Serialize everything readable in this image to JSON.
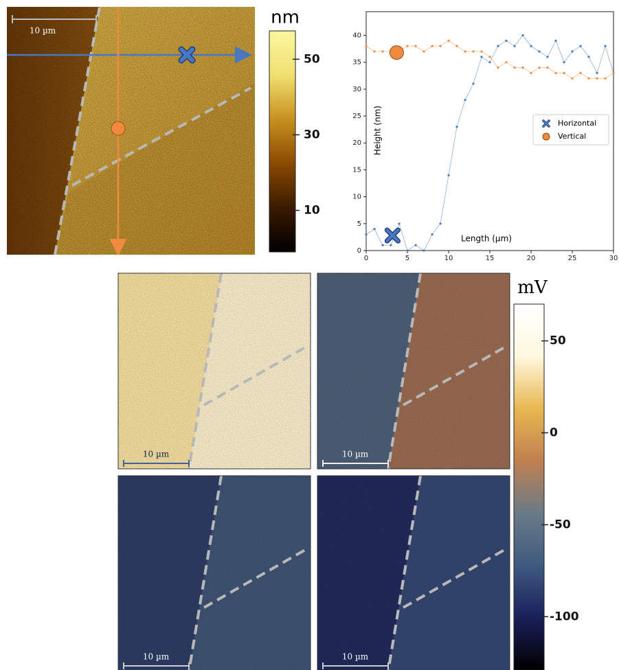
{
  "chart_data": {
    "type": "line",
    "xlabel": "Length (µm)",
    "ylabel": "Height (nm)",
    "xlim": [
      0,
      30
    ],
    "ylim": [
      0,
      44.4
    ],
    "xticks": [
      0,
      5,
      10,
      15,
      20,
      25,
      30
    ],
    "yticks": [
      0,
      5,
      10,
      15,
      20,
      25,
      30,
      35,
      40
    ],
    "legend": "right",
    "x": [
      0,
      1,
      2,
      3,
      4,
      5,
      6,
      7,
      8,
      9,
      10,
      11,
      12,
      13,
      14,
      15,
      16,
      17,
      18,
      19,
      20,
      21,
      22,
      23,
      24,
      25,
      26,
      27,
      28,
      29,
      30
    ],
    "series": [
      {
        "name": "Horizontal",
        "color": "#4a78c0",
        "marker": "x",
        "values": [
          3,
          4,
          1,
          1,
          5,
          0,
          1,
          0,
          3,
          5,
          14,
          23,
          28,
          31,
          36,
          35,
          38,
          39,
          38,
          40,
          38,
          37,
          36,
          39,
          35,
          37,
          38,
          36,
          33,
          38,
          33
        ],
        "highlight": {
          "x": 3.2,
          "y": 2.8
        }
      },
      {
        "name": "Vertical",
        "color": "#f08a3c",
        "marker": "o",
        "values": [
          38,
          37,
          37,
          37,
          37,
          38,
          38,
          37,
          38,
          38,
          39,
          38,
          37,
          37,
          37,
          36,
          34,
          35,
          34,
          34,
          33,
          34,
          34,
          33,
          33,
          32,
          33,
          32,
          32,
          32,
          33
        ],
        "highlight": {
          "x": 3.7,
          "y": 36.8
        }
      }
    ]
  },
  "topography": {
    "scale_bar": "10 µm"
  },
  "potential_maps": [
    {
      "scale_bar": "10 µm"
    },
    {
      "scale_bar": "10 µm"
    },
    {
      "scale_bar": "10 µm"
    },
    {
      "scale_bar": "10 µm"
    }
  ],
  "colorbars": [
    {
      "label": "nm",
      "lim": [
        -1,
        57.5
      ],
      "ticks": [
        10,
        30,
        50
      ],
      "colors": [
        "#000000",
        "#3a1a00",
        "#8a4a00",
        "#c89020",
        "#f0e070",
        "#fbf6a0"
      ]
    },
    {
      "label": "mV",
      "lim": [
        -129,
        70
      ],
      "ticks": [
        50,
        0,
        -50,
        -100
      ],
      "colors": [
        "#000000",
        "#1a1f5a",
        "#3f5a80",
        "#6a7a88",
        "#c08050",
        "#e8b850",
        "#fff8e0",
        "#ffffff"
      ]
    }
  ]
}
